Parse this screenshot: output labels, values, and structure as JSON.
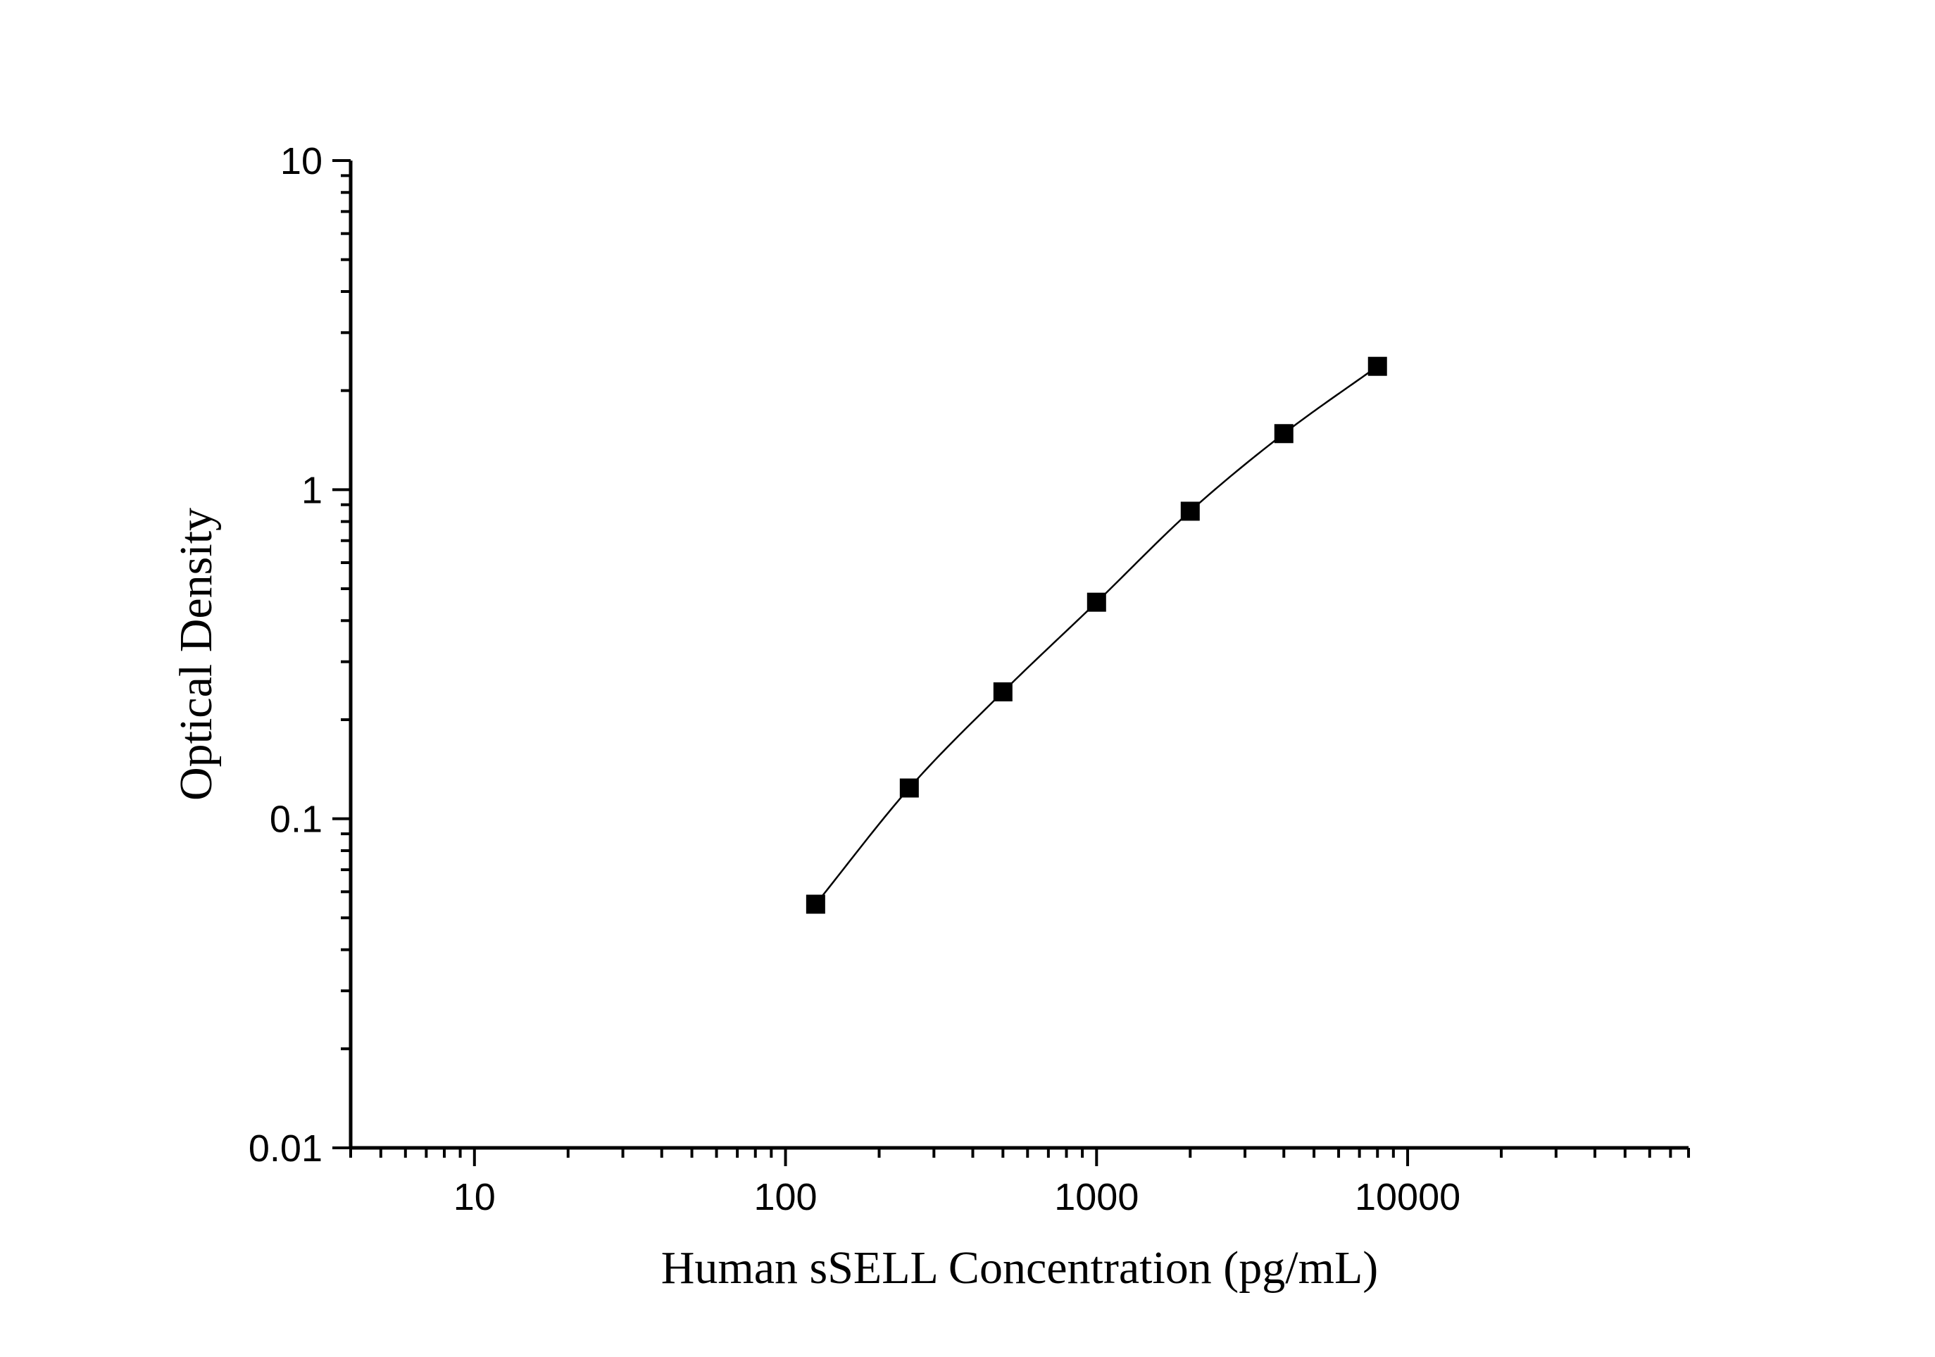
{
  "chart_data": {
    "type": "scatter",
    "title": "",
    "xlabel": "Human sSELL Concentration (pg/mL)",
    "ylabel": "Optical Density",
    "x_scale": "log",
    "y_scale": "log",
    "xlim": [
      4,
      80000
    ],
    "ylim": [
      0.01,
      10
    ],
    "x_ticks": [
      {
        "value": 10,
        "label": "10"
      },
      {
        "value": 100,
        "label": "100"
      },
      {
        "value": 1000,
        "label": "1000"
      },
      {
        "value": 10000,
        "label": "10000"
      }
    ],
    "y_ticks": [
      {
        "value": 0.01,
        "label": "0.01"
      },
      {
        "value": 0.1,
        "label": "0.1"
      },
      {
        "value": 1,
        "label": "1"
      },
      {
        "value": 10,
        "label": "10"
      }
    ],
    "grid": false,
    "legend": "none",
    "series": [
      {
        "x": [
          125,
          250,
          500,
          1000,
          2000,
          4000,
          8000
        ],
        "y": [
          0.055,
          0.124,
          0.243,
          0.455,
          0.86,
          1.48,
          2.37
        ],
        "marker": "square",
        "fitted_curve": true,
        "color": "#000000"
      }
    ]
  }
}
